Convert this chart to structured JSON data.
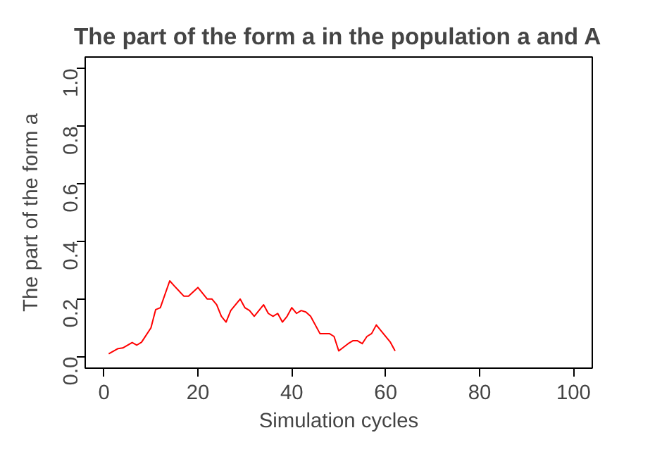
{
  "chart_data": {
    "type": "line",
    "title": "The part of the form a in the population a and A",
    "xlabel": "Simulation cycles",
    "ylabel": "The part of the form a",
    "x": [
      1,
      3,
      4,
      6,
      7,
      8,
      10,
      11,
      12,
      14,
      15,
      17,
      18,
      20,
      22,
      23,
      24,
      25,
      26,
      27,
      29,
      30,
      31,
      32,
      33,
      34,
      35,
      36,
      37,
      38,
      39,
      40,
      41,
      42,
      43,
      44,
      46,
      48,
      49,
      50,
      52,
      53,
      54,
      55,
      56,
      57,
      58,
      59,
      61,
      62
    ],
    "series": [
      {
        "color": "#ff0000",
        "values": [
          0.01,
          0.028,
          0.03,
          0.049,
          0.04,
          0.05,
          0.1,
          0.163,
          0.17,
          0.263,
          0.245,
          0.21,
          0.21,
          0.24,
          0.2,
          0.2,
          0.18,
          0.14,
          0.12,
          0.16,
          0.2,
          0.17,
          0.16,
          0.14,
          0.16,
          0.18,
          0.15,
          0.14,
          0.15,
          0.12,
          0.14,
          0.17,
          0.15,
          0.16,
          0.155,
          0.14,
          0.08,
          0.08,
          0.07,
          0.02,
          0.045,
          0.055,
          0.055,
          0.045,
          0.07,
          0.08,
          0.11,
          0.09,
          0.05,
          0.02
        ]
      }
    ],
    "xlim": [
      -4,
      104
    ],
    "ylim": [
      -0.04,
      1.04
    ],
    "xticks": [
      0,
      20,
      40,
      60,
      80,
      100
    ],
    "yticks": [
      {
        "value": 0,
        "label": "0.0"
      },
      {
        "value": 0.2,
        "label": "0.2"
      },
      {
        "value": 0.4,
        "label": "0.4"
      },
      {
        "value": 0.6,
        "label": "0.6"
      },
      {
        "value": 0.8,
        "label": "0.8"
      },
      {
        "value": 1,
        "label": "1.0"
      }
    ],
    "grid": false,
    "line_style": "solid"
  }
}
